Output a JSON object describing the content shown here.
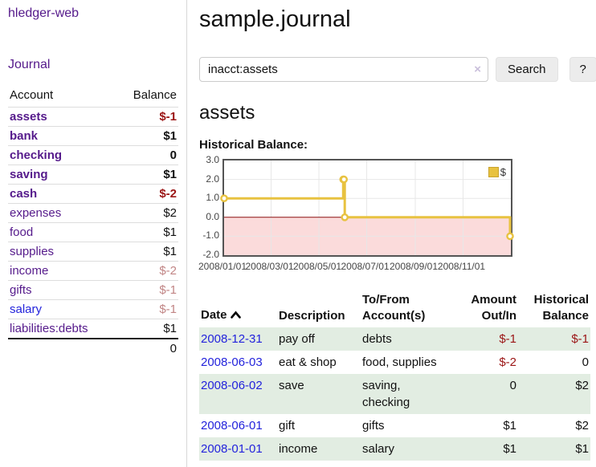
{
  "sidebar": {
    "app_title": "hledger-web",
    "journal_link": "Journal",
    "headers": {
      "account": "Account",
      "balance": "Balance"
    },
    "rows": [
      {
        "label": "assets",
        "indent": 1,
        "bold": true,
        "link_color": "purple",
        "balance": "$-1",
        "bal_style": "neg"
      },
      {
        "label": "bank",
        "indent": 2,
        "bold": true,
        "link_color": "purple",
        "balance": "$1",
        "bal_style": "normal"
      },
      {
        "label": "checking",
        "indent": 3,
        "bold": true,
        "link_color": "purple",
        "balance": "0",
        "bal_style": "normal"
      },
      {
        "label": "saving",
        "indent": 3,
        "bold": true,
        "link_color": "purple",
        "balance": "$1",
        "bal_style": "normal"
      },
      {
        "label": "cash",
        "indent": 2,
        "bold": true,
        "link_color": "purple",
        "balance": "$-2",
        "bal_style": "neg"
      },
      {
        "label": "expenses",
        "indent": 1,
        "bold": false,
        "link_color": "purple",
        "balance": "$2",
        "bal_style": "normal"
      },
      {
        "label": "food",
        "indent": 2,
        "bold": false,
        "link_color": "purple",
        "balance": "$1",
        "bal_style": "normal"
      },
      {
        "label": "supplies",
        "indent": 2,
        "bold": false,
        "link_color": "purple",
        "balance": "$1",
        "bal_style": "normal"
      },
      {
        "label": "income",
        "indent": 1,
        "bold": false,
        "link_color": "purple",
        "balance": "$-2",
        "bal_style": "neg-muted"
      },
      {
        "label": "gifts",
        "indent": 2,
        "bold": false,
        "link_color": "purple",
        "balance": "$-1",
        "bal_style": "neg-muted"
      },
      {
        "label": "salary",
        "indent": 2,
        "bold": false,
        "link_color": "blue",
        "balance": "$-1",
        "bal_style": "neg-muted"
      },
      {
        "label": "liabilities:debts",
        "indent": 1,
        "bold": false,
        "link_color": "purple",
        "balance": "$1",
        "bal_style": "normal"
      }
    ],
    "total": "0"
  },
  "main": {
    "title": "sample.journal",
    "search": {
      "value": "inacct:assets",
      "clear_icon": "×",
      "button_label": "Search",
      "help_label": "?"
    },
    "account_heading": "assets",
    "chart_label": "Historical Balance:"
  },
  "chart_data": {
    "type": "line",
    "step": true,
    "title": "Historical Balance",
    "series": [
      {
        "name": "$",
        "color": "#e8c240",
        "points": [
          [
            "2008-01-01",
            1
          ],
          [
            "2008-06-01",
            2
          ],
          [
            "2008-06-02",
            2
          ],
          [
            "2008-06-03",
            0
          ],
          [
            "2008-12-31",
            -1
          ]
        ]
      }
    ],
    "x_range": [
      "2008-01-01",
      "2009-01-01"
    ],
    "ylim": [
      -2,
      3
    ],
    "y_ticks": [
      "3.0",
      "2.0",
      "1.0",
      "0.0",
      "-1.0",
      "-2.0"
    ],
    "x_ticks": [
      {
        "label": "2008/01/01",
        "date": "2008-01-01"
      },
      {
        "label": "2008/03/01",
        "date": "2008-03-01"
      },
      {
        "label": "2008/05/01",
        "date": "2008-05-01"
      },
      {
        "label": "2008/07/01",
        "date": "2008-07-01"
      },
      {
        "label": "2008/09/01",
        "date": "2008-09-01"
      },
      {
        "label": "2008/11/01",
        "date": "2008-11-01"
      }
    ],
    "legend": "$",
    "legend_position": "top-right",
    "grid": true,
    "grid_color": "#e7e7e7",
    "negative_region_color": "#fbdbdb",
    "zero_line_color": "#8b1010"
  },
  "transactions": {
    "headers": {
      "date": "Date",
      "description": "Description",
      "accounts": "To/From Account(s)",
      "amount": "Amount Out/In",
      "balance": "Historical Balance"
    },
    "rows": [
      {
        "date": "2008-12-31",
        "description": "pay off",
        "accounts": "debts",
        "amount": "$-1",
        "amount_neg": true,
        "balance": "$-1",
        "balance_neg": true
      },
      {
        "date": "2008-06-03",
        "description": "eat & shop",
        "accounts": "food, supplies",
        "amount": "$-2",
        "amount_neg": true,
        "balance": "0",
        "balance_neg": false
      },
      {
        "date": "2008-06-02",
        "description": "save",
        "accounts": "saving, checking",
        "amount": "0",
        "amount_neg": false,
        "balance": "$2",
        "balance_neg": false
      },
      {
        "date": "2008-06-01",
        "description": "gift",
        "accounts": "gifts",
        "amount": "$1",
        "amount_neg": false,
        "balance": "$2",
        "balance_neg": false
      },
      {
        "date": "2008-01-01",
        "description": "income",
        "accounts": "salary",
        "amount": "$1",
        "amount_neg": false,
        "balance": "$1",
        "balance_neg": false
      }
    ]
  }
}
